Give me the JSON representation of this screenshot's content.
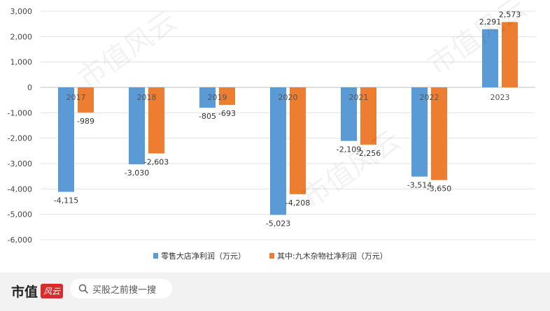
{
  "chart_data": {
    "type": "bar",
    "categories": [
      "2017",
      "2018",
      "2019",
      "2020",
      "2021",
      "2022",
      "2023"
    ],
    "series": [
      {
        "name": "零售大店净利润（万元）",
        "values": [
          -4115,
          -3030,
          -805,
          -5023,
          -2109,
          -3514,
          2291
        ],
        "labels": [
          "-4,115",
          "-3,030",
          "-805",
          "-5,023",
          "-2,109",
          "-3,514",
          "2,291"
        ],
        "color": "#5b9bd5"
      },
      {
        "name": "其中:九木杂物社净利润（万元）",
        "values": [
          -989,
          -2603,
          -693,
          -4208,
          -2256,
          -3650,
          2573
        ],
        "labels": [
          "-989",
          "-2,603",
          "-693",
          "-4,208",
          "-2,256",
          "-3,650",
          "2,573"
        ],
        "color": "#ed7d31"
      }
    ],
    "ylim": [
      -6000,
      3000
    ],
    "yticks": [
      3000,
      2000,
      1000,
      0,
      -1000,
      -2000,
      -3000,
      -4000,
      -5000,
      -6000
    ],
    "ytick_labels": [
      "3,000",
      "2,000",
      "1,000",
      "0",
      "-1,000",
      "-2,000",
      "-3,000",
      "-4,000",
      "-5,000",
      "-6,000"
    ],
    "legend_position": "bottom",
    "grid": true
  },
  "watermark_text": "市值风云",
  "footer": {
    "brand": "市值",
    "brand_mark": "风云",
    "search_text": "买股之前搜一搜"
  }
}
